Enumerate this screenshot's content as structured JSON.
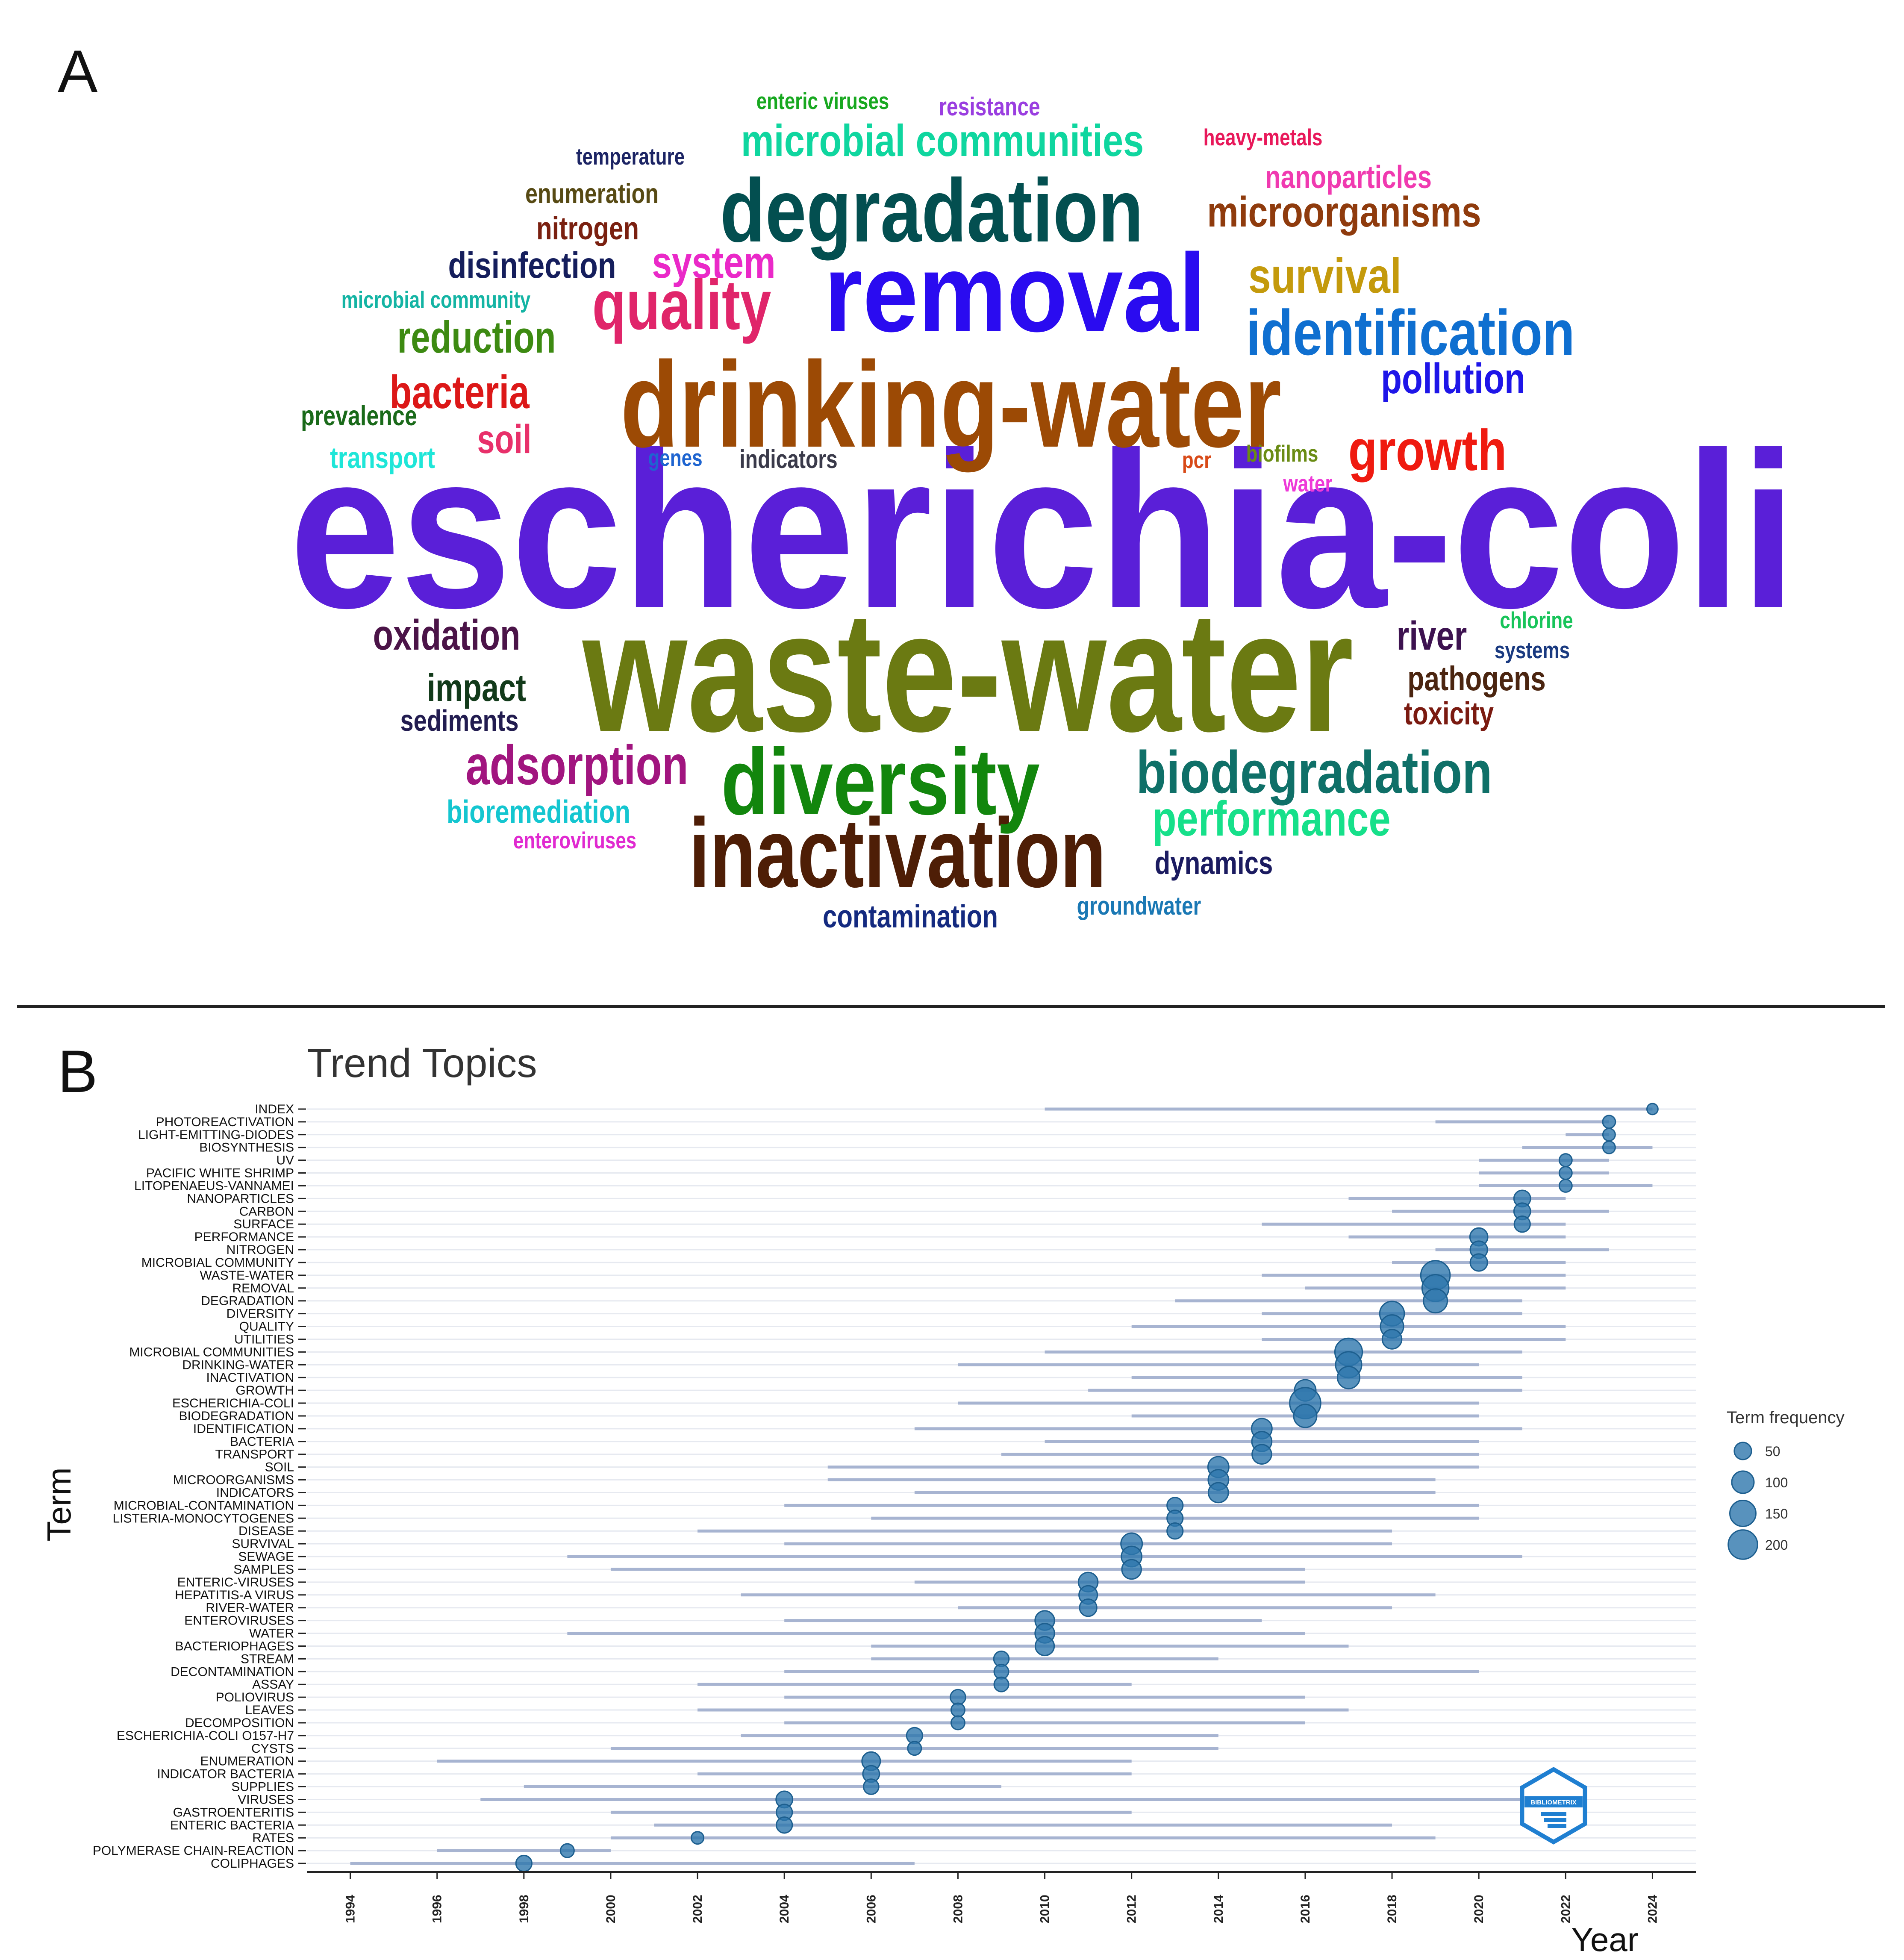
{
  "panels": {
    "a": "A",
    "b": "B"
  },
  "colors": {
    "point": "#2e77ad",
    "range": "#a7b4d1",
    "divider": "#222222",
    "grid": "#e6e9f0",
    "logo": "#1f7fd1"
  },
  "logo": {
    "text": "BIBLIOMETRIX",
    "icon": "bibliometrix-logo-icon"
  },
  "word_cloud": [
    {
      "text": "escherichia-coli",
      "color": "#5a1fd8"
    },
    {
      "text": "waste-water",
      "color": "#6b7a12"
    },
    {
      "text": "drinking-water",
      "color": "#9c4a05"
    },
    {
      "text": "removal",
      "color": "#2a0bf0"
    },
    {
      "text": "degradation",
      "color": "#034f50"
    },
    {
      "text": "inactivation",
      "color": "#4e1e06"
    },
    {
      "text": "diversity",
      "color": "#12860d"
    },
    {
      "text": "biodegradation",
      "color": "#0f7068"
    },
    {
      "text": "identification",
      "color": "#0f6fd0"
    },
    {
      "text": "quality",
      "color": "#e0256a"
    },
    {
      "text": "growth",
      "color": "#ef1a10"
    },
    {
      "text": "survival",
      "color": "#c49a0c"
    },
    {
      "text": "microbial communities",
      "color": "#0fd69f"
    },
    {
      "text": "microorganisms",
      "color": "#8f3b0d"
    },
    {
      "text": "pollution",
      "color": "#1e15e8"
    },
    {
      "text": "adsorption",
      "color": "#a1157f"
    },
    {
      "text": "performance",
      "color": "#16e08a"
    },
    {
      "text": "oxidation",
      "color": "#4b1448"
    },
    {
      "text": "bacteria",
      "color": "#dc1818"
    },
    {
      "text": "reduction",
      "color": "#3d8a12"
    },
    {
      "text": "system",
      "color": "#ea29c8"
    },
    {
      "text": "disinfection",
      "color": "#151e5c"
    },
    {
      "text": "impact",
      "color": "#123a1a"
    },
    {
      "text": "pathogens",
      "color": "#4b2510"
    },
    {
      "text": "river",
      "color": "#3d1250"
    },
    {
      "text": "toxicity",
      "color": "#7a1a10"
    },
    {
      "text": "soil",
      "color": "#e8306a"
    },
    {
      "text": "nanoparticles",
      "color": "#f03ab0"
    },
    {
      "text": "bioremediation",
      "color": "#14c6d0"
    },
    {
      "text": "dynamics",
      "color": "#1b1b60"
    },
    {
      "text": "contamination",
      "color": "#142a80"
    },
    {
      "text": "groundwater",
      "color": "#1a78b4"
    },
    {
      "text": "sediments",
      "color": "#221c50"
    },
    {
      "text": "nitrogen",
      "color": "#7a2010"
    },
    {
      "text": "enumeration",
      "color": "#574a14"
    },
    {
      "text": "temperature",
      "color": "#1c2464"
    },
    {
      "text": "resistance",
      "color": "#9a3ee0"
    },
    {
      "text": "enteric viruses",
      "color": "#18a820"
    },
    {
      "text": "heavy-metals",
      "color": "#e8185a"
    },
    {
      "text": "microbial community",
      "color": "#14b4a4"
    },
    {
      "text": "prevalence",
      "color": "#1a6a1a"
    },
    {
      "text": "transport",
      "color": "#1ee6d8"
    },
    {
      "text": "genes",
      "color": "#1e64d0"
    },
    {
      "text": "indicators",
      "color": "#3a3a4a"
    },
    {
      "text": "pcr",
      "color": "#d84a18"
    },
    {
      "text": "biofilms",
      "color": "#6a8c14"
    },
    {
      "text": "water",
      "color": "#ee3ad8"
    },
    {
      "text": "chlorine",
      "color": "#18c45a"
    },
    {
      "text": "systems",
      "color": "#1a3a80"
    },
    {
      "text": "enteroviruses",
      "color": "#e02ad0"
    }
  ],
  "chart_data": {
    "type": "scatter",
    "title": "Trend Topics",
    "xlabel": "Year",
    "ylabel": "Term",
    "xlim": [
      1993,
      2025
    ],
    "x_ticks": [
      1994,
      1996,
      1998,
      2000,
      2002,
      2004,
      2006,
      2008,
      2010,
      2012,
      2014,
      2016,
      2018,
      2020,
      2022,
      2024
    ],
    "legend": {
      "title": "Term frequency",
      "position": "right",
      "sizes": [
        50,
        100,
        150,
        200
      ]
    },
    "series": [
      {
        "term": "INDEX",
        "year": 2024,
        "q1": 2010,
        "q3": 2024,
        "freq": 12
      },
      {
        "term": "PHOTOREACTIVATION",
        "year": 2023,
        "q1": 2019,
        "q3": 2023,
        "freq": 20
      },
      {
        "term": "LIGHT-EMITTING-DIODES",
        "year": 2023,
        "q1": 2022,
        "q3": 2023,
        "freq": 18
      },
      {
        "term": "BIOSYNTHESIS",
        "year": 2023,
        "q1": 2021,
        "q3": 2024,
        "freq": 18
      },
      {
        "term": "UV",
        "year": 2022,
        "q1": 2020,
        "q3": 2023,
        "freq": 20
      },
      {
        "term": "PACIFIC WHITE SHRIMP",
        "year": 2022,
        "q1": 2020,
        "q3": 2023,
        "freq": 20
      },
      {
        "term": "LITOPENAEUS-VANNAMEI",
        "year": 2022,
        "q1": 2020,
        "q3": 2024,
        "freq": 20
      },
      {
        "term": "NANOPARTICLES",
        "year": 2021,
        "q1": 2017,
        "q3": 2022,
        "freq": 45
      },
      {
        "term": "CARBON",
        "year": 2021,
        "q1": 2018,
        "q3": 2023,
        "freq": 45
      },
      {
        "term": "SURFACE",
        "year": 2021,
        "q1": 2015,
        "q3": 2022,
        "freq": 40
      },
      {
        "term": "PERFORMANCE",
        "year": 2020,
        "q1": 2017,
        "q3": 2022,
        "freq": 55
      },
      {
        "term": "NITROGEN",
        "year": 2020,
        "q1": 2019,
        "q3": 2023,
        "freq": 50
      },
      {
        "term": "MICROBIAL COMMUNITY",
        "year": 2020,
        "q1": 2018,
        "q3": 2022,
        "freq": 50
      },
      {
        "term": "WASTE-WATER",
        "year": 2019,
        "q1": 2015,
        "q3": 2022,
        "freq": 200
      },
      {
        "term": "REMOVAL",
        "year": 2019,
        "q1": 2016,
        "q3": 2022,
        "freq": 160
      },
      {
        "term": "DEGRADATION",
        "year": 2019,
        "q1": 2013,
        "q3": 2021,
        "freq": 120
      },
      {
        "term": "DIVERSITY",
        "year": 2018,
        "q1": 2015,
        "q3": 2021,
        "freq": 130
      },
      {
        "term": "QUALITY",
        "year": 2018,
        "q1": 2012,
        "q3": 2022,
        "freq": 110
      },
      {
        "term": "UTILITIES",
        "year": 2018,
        "q1": 2015,
        "q3": 2022,
        "freq": 70
      },
      {
        "term": "MICROBIAL COMMUNITIES",
        "year": 2017,
        "q1": 2010,
        "q3": 2021,
        "freq": 170
      },
      {
        "term": "DRINKING-WATER",
        "year": 2017,
        "q1": 2008,
        "q3": 2020,
        "freq": 150
      },
      {
        "term": "INACTIVATION",
        "year": 2017,
        "q1": 2012,
        "q3": 2021,
        "freq": 100
      },
      {
        "term": "GROWTH",
        "year": 2016,
        "q1": 2011,
        "q3": 2021,
        "freq": 90
      },
      {
        "term": "ESCHERICHIA-COLI",
        "year": 2016,
        "q1": 2008,
        "q3": 2020,
        "freq": 230
      },
      {
        "term": "BIODEGRADATION",
        "year": 2016,
        "q1": 2012,
        "q3": 2020,
        "freq": 110
      },
      {
        "term": "IDENTIFICATION",
        "year": 2015,
        "q1": 2007,
        "q3": 2021,
        "freq": 80
      },
      {
        "term": "BACTERIA",
        "year": 2015,
        "q1": 2010,
        "q3": 2020,
        "freq": 75
      },
      {
        "term": "TRANSPORT",
        "year": 2015,
        "q1": 2009,
        "q3": 2020,
        "freq": 70
      },
      {
        "term": "SOIL",
        "year": 2014,
        "q1": 2005,
        "q3": 2020,
        "freq": 85
      },
      {
        "term": "MICROORGANISMS",
        "year": 2014,
        "q1": 2005,
        "q3": 2019,
        "freq": 80
      },
      {
        "term": "INDICATORS",
        "year": 2014,
        "q1": 2007,
        "q3": 2019,
        "freq": 75
      },
      {
        "term": "MICROBIAL-CONTAMINATION",
        "year": 2013,
        "q1": 2004,
        "q3": 2020,
        "freq": 40
      },
      {
        "term": "LISTERIA-MONOCYTOGENES",
        "year": 2013,
        "q1": 2006,
        "q3": 2020,
        "freq": 40
      },
      {
        "term": "DISEASE",
        "year": 2013,
        "q1": 2002,
        "q3": 2018,
        "freq": 40
      },
      {
        "term": "SURVIVAL",
        "year": 2012,
        "q1": 2004,
        "q3": 2018,
        "freq": 90
      },
      {
        "term": "SEWAGE",
        "year": 2012,
        "q1": 1999,
        "q3": 2021,
        "freq": 80
      },
      {
        "term": "SAMPLES",
        "year": 2012,
        "q1": 2000,
        "q3": 2016,
        "freq": 70
      },
      {
        "term": "ENTERIC-VIRUSES",
        "year": 2011,
        "q1": 2007,
        "q3": 2016,
        "freq": 70
      },
      {
        "term": "HEPATITIS-A VIRUS",
        "year": 2011,
        "q1": 2003,
        "q3": 2019,
        "freq": 60
      },
      {
        "term": "RIVER-WATER",
        "year": 2011,
        "q1": 2008,
        "q3": 2018,
        "freq": 50
      },
      {
        "term": "ENTEROVIRUSES",
        "year": 2010,
        "q1": 2004,
        "q3": 2015,
        "freq": 70
      },
      {
        "term": "WATER",
        "year": 2010,
        "q1": 1999,
        "q3": 2016,
        "freq": 70
      },
      {
        "term": "BACTERIOPHAGES",
        "year": 2010,
        "q1": 2006,
        "q3": 2017,
        "freq": 65
      },
      {
        "term": "STREAM",
        "year": 2009,
        "q1": 2006,
        "q3": 2014,
        "freq": 35
      },
      {
        "term": "DECONTAMINATION",
        "year": 2009,
        "q1": 2004,
        "q3": 2020,
        "freq": 30
      },
      {
        "term": "ASSAY",
        "year": 2009,
        "q1": 2002,
        "q3": 2012,
        "freq": 30
      },
      {
        "term": "POLIOVIRUS",
        "year": 2008,
        "q1": 2004,
        "q3": 2016,
        "freq": 35
      },
      {
        "term": "LEAVES",
        "year": 2008,
        "q1": 2002,
        "q3": 2017,
        "freq": 25
      },
      {
        "term": "DECOMPOSITION",
        "year": 2008,
        "q1": 2004,
        "q3": 2016,
        "freq": 25
      },
      {
        "term": "ESCHERICHIA-COLI O157-H7",
        "year": 2007,
        "q1": 2003,
        "q3": 2014,
        "freq": 40
      },
      {
        "term": "CYSTS",
        "year": 2007,
        "q1": 2000,
        "q3": 2014,
        "freq": 25
      },
      {
        "term": "ENUMERATION",
        "year": 2006,
        "q1": 1996,
        "q3": 2012,
        "freq": 60
      },
      {
        "term": "INDICATOR BACTERIA",
        "year": 2006,
        "q1": 2002,
        "q3": 2012,
        "freq": 45
      },
      {
        "term": "SUPPLIES",
        "year": 2006,
        "q1": 1998,
        "q3": 2009,
        "freq": 35
      },
      {
        "term": "VIRUSES",
        "year": 2004,
        "q1": 1997,
        "q3": 2021,
        "freq": 45
      },
      {
        "term": "GASTROENTERITIS",
        "year": 2004,
        "q1": 2000,
        "q3": 2012,
        "freq": 40
      },
      {
        "term": "ENTERIC BACTERIA",
        "year": 2004,
        "q1": 2001,
        "q3": 2018,
        "freq": 40
      },
      {
        "term": "RATES",
        "year": 2002,
        "q1": 2000,
        "q3": 2019,
        "freq": 18
      },
      {
        "term": "POLYMERASE CHAIN-REACTION",
        "year": 1999,
        "q1": 1996,
        "q3": 2000,
        "freq": 25
      },
      {
        "term": "COLIPHAGES",
        "year": 1998,
        "q1": 1994,
        "q3": 2007,
        "freq": 40
      }
    ]
  }
}
